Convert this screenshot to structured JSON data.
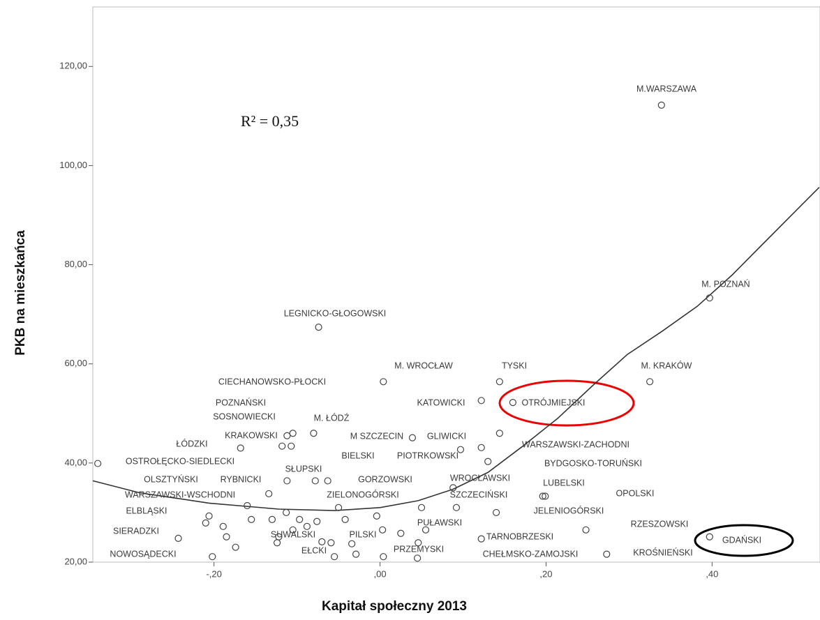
{
  "chart_data": {
    "type": "scatter",
    "x_label": "Kapitał społeczny 2013",
    "y_label": "PKB na mieszkańca",
    "annotation": "R² = 0,35",
    "xlim": [
      -0.346,
      0.53
    ],
    "ylim": [
      20,
      132
    ],
    "xticks": [
      {
        "value": -0.2,
        "label": "-,20"
      },
      {
        "value": 0,
        "label": ",00"
      },
      {
        "value": 0.2,
        "label": ",20"
      },
      {
        "value": 0.4,
        "label": ",40"
      }
    ],
    "yticks": [
      {
        "value": 20,
        "label": "20,00"
      },
      {
        "value": 40,
        "label": "40,00"
      },
      {
        "value": 60,
        "label": "60,00"
      },
      {
        "value": 80,
        "label": "80,00"
      },
      {
        "value": 100,
        "label": "100,00"
      },
      {
        "value": 120,
        "label": "120,00"
      }
    ],
    "points": [
      {
        "label": "M.WARSZAWA",
        "x": 0.339,
        "y": 112.2
      },
      {
        "label": "M. POZNAŃ",
        "x": 0.397,
        "y": 73.3
      },
      {
        "label": "LEGNICKO-GŁOGOWSKI",
        "x": -0.074,
        "y": 67.4
      },
      {
        "label": "M. WROCŁAW",
        "x": 0.004,
        "y": 56.4
      },
      {
        "label": "TYSKI",
        "x": 0.144,
        "y": 56.4
      },
      {
        "label": "M. KRAKÓW",
        "x": 0.325,
        "y": 56.4
      },
      {
        "label": "CIECHANOWSKO-PŁOCKI",
        "x": -0.112,
        "y": 45.5
      },
      {
        "label": "KATOWICKI",
        "x": 0.122,
        "y": 52.6
      },
      {
        "label": "OTRÓJMIEJSKI",
        "x": 0.16,
        "y": 52.2
      },
      {
        "label": "POZNAŃSKI",
        "x": -0.118,
        "y": 43.4
      },
      {
        "label": "SOSNOWIECKI",
        "x": -0.107,
        "y": 43.4
      },
      {
        "label": "M. ŁÓDŹ",
        "x": -0.08,
        "y": 46.0
      },
      {
        "label": "KRAKOWSKI",
        "x": -0.105,
        "y": 46.0
      },
      {
        "label": "M SZCZECIN",
        "x": 0.039,
        "y": 45.1
      },
      {
        "label": "GLIWICKI",
        "x": 0.144,
        "y": 46.0
      },
      {
        "label": "ŁÓDZKI",
        "x": -0.168,
        "y": 43.0
      },
      {
        "label": "WARSZAWSKI-ZACHODNI",
        "x": 0.122,
        "y": 43.1
      },
      {
        "label": "BIELSKI",
        "x": -0.063,
        "y": 36.4
      },
      {
        "label": "PIOTRKOWSKI",
        "x": 0.097,
        "y": 42.7
      },
      {
        "label": "OSTROŁĘCKO-SIEDLECKI",
        "x": -0.34,
        "y": 39.9
      },
      {
        "label": "BYDGOSKO-TORUŃSKI",
        "x": 0.13,
        "y": 40.3
      },
      {
        "label": "SŁUPSKI",
        "x": -0.112,
        "y": 36.4
      },
      {
        "label": "OLSZTYŃSKI",
        "x": -0.16,
        "y": 31.4
      },
      {
        "label": "RYBNICKI",
        "x": -0.134,
        "y": 33.8
      },
      {
        "label": "GORZOWSKI",
        "x": -0.078,
        "y": 36.4
      },
      {
        "label": "WROCŁAWSKI",
        "x": 0.088,
        "y": 35.0
      },
      {
        "label": "LUBELSKI",
        "x": 0.196,
        "y": 33.3
      },
      {
        "label": "OPOLSKI",
        "x": 0.199,
        "y": 33.3
      },
      {
        "label": "WARSZAWSKI-WSCHODNI",
        "x": -0.113,
        "y": 30.0
      },
      {
        "label": "ZIELONOGÓRSKI",
        "x": -0.05,
        "y": 31.0
      },
      {
        "label": "SZCZECIŃSKI",
        "x": 0.05,
        "y": 31.0
      },
      {
        "label": "ELBLĄSKI",
        "x": -0.206,
        "y": 29.3
      },
      {
        "label": "JELENIOGÓRSKI",
        "x": 0.14,
        "y": 30.0
      },
      {
        "label": "PUŁAWSKI",
        "x": 0.025,
        "y": 25.8
      },
      {
        "label": "RZESZOWSKI",
        "x": 0.248,
        "y": 26.5
      },
      {
        "label": "SIERADZKI",
        "x": -0.243,
        "y": 24.8
      },
      {
        "label": "SUWALSKI",
        "x": -0.124,
        "y": 23.9
      },
      {
        "label": "PILSKI",
        "x": -0.07,
        "y": 24.1
      },
      {
        "label": "TARNOBRZESKI",
        "x": 0.122,
        "y": 24.7
      },
      {
        "label": "GDAŃSKI",
        "x": 0.397,
        "y": 25.1
      },
      {
        "label": "EŁCKI",
        "x": -0.055,
        "y": 21.1
      },
      {
        "label": "PRZEMYSKI",
        "x": 0.004,
        "y": 21.1
      },
      {
        "label": "CHEŁMSKO-ZAMOJSKI",
        "x": 0.045,
        "y": 20.8
      },
      {
        "label": "KROŚNIEŃSKI",
        "x": 0.273,
        "y": 21.6
      },
      {
        "label": "NOWOSĄDECKI",
        "x": -0.202,
        "y": 21.1
      },
      {
        "label": null,
        "x": -0.21,
        "y": 27.9
      },
      {
        "label": null,
        "x": -0.189,
        "y": 27.2
      },
      {
        "label": null,
        "x": -0.185,
        "y": 25.1
      },
      {
        "label": null,
        "x": -0.174,
        "y": 23.0
      },
      {
        "label": null,
        "x": -0.155,
        "y": 28.6
      },
      {
        "label": null,
        "x": -0.13,
        "y": 28.6
      },
      {
        "label": null,
        "x": -0.122,
        "y": 25.1
      },
      {
        "label": null,
        "x": -0.105,
        "y": 26.5
      },
      {
        "label": null,
        "x": -0.097,
        "y": 28.6
      },
      {
        "label": null,
        "x": -0.088,
        "y": 27.2
      },
      {
        "label": null,
        "x": -0.076,
        "y": 28.2
      },
      {
        "label": null,
        "x": -0.042,
        "y": 28.6
      },
      {
        "label": null,
        "x": -0.034,
        "y": 23.7
      },
      {
        "label": null,
        "x": -0.004,
        "y": 29.3
      },
      {
        "label": null,
        "x": 0.003,
        "y": 26.5
      },
      {
        "label": null,
        "x": 0.055,
        "y": 26.5
      },
      {
        "label": null,
        "x": 0.092,
        "y": 31.0
      },
      {
        "label": null,
        "x": -0.059,
        "y": 23.9
      },
      {
        "label": null,
        "x": -0.029,
        "y": 21.6
      },
      {
        "label": null,
        "x": 0.046,
        "y": 23.9
      }
    ],
    "fit": {
      "x": [
        -0.346,
        -0.29,
        -0.206,
        -0.122,
        -0.055,
        0.0,
        0.046,
        0.088,
        0.13,
        0.172,
        0.214,
        0.256,
        0.298,
        0.34,
        0.382,
        0.424,
        0.466,
        0.529
      ],
      "y": [
        36.4,
        34.0,
        31.9,
        30.7,
        30.4,
        31.0,
        32.4,
        34.7,
        38.1,
        43.4,
        49.0,
        55.6,
        61.9,
        66.6,
        71.6,
        77.9,
        85.0,
        95.6
      ]
    }
  }
}
